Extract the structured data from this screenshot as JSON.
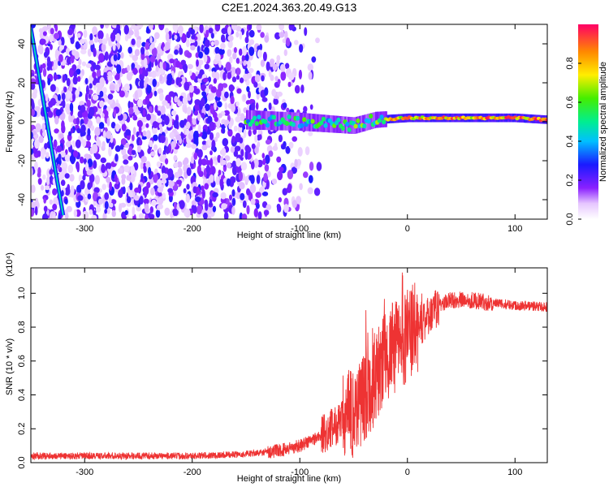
{
  "title": "C2E1.2024.363.20.49.G13",
  "chart_data": [
    {
      "type": "heatmap",
      "xlabel": "Height of straight line (km)",
      "ylabel": "Frequency (Hz)",
      "xlim": [
        -350,
        130
      ],
      "ylim": [
        -50,
        50
      ],
      "xticks": [
        -300,
        -200,
        -100,
        0,
        100
      ],
      "yticks": [
        -40,
        -20,
        0,
        20,
        40
      ],
      "colorbar": {
        "label": "Normalized spectral amplitude",
        "range": [
          0,
          1
        ],
        "ticks": [
          "0.0",
          "0.2",
          "0.4",
          "0.6",
          "0.8"
        ],
        "tick_values": [
          0.0,
          0.2,
          0.4,
          0.6,
          0.8
        ]
      },
      "features": [
        {
          "name": "noise speckle field",
          "x_range": [
            -350,
            -120
          ],
          "y_range": [
            -50,
            50
          ],
          "amplitude": 0.15
        },
        {
          "name": "diagonal tone streak",
          "points": [
            [
              -350,
              48
            ],
            [
              -320,
              -48
            ]
          ],
          "amplitude": 0.4
        },
        {
          "name": "carrier band",
          "points": [
            [
              -150,
              1
            ],
            [
              -100,
              0
            ],
            [
              -50,
              -2
            ],
            [
              -30,
              1
            ],
            [
              0,
              2
            ],
            [
              50,
              2
            ],
            [
              100,
              2
            ],
            [
              130,
              1
            ]
          ],
          "amplitude_end": 1.0
        }
      ]
    },
    {
      "type": "line",
      "xlabel": "Height of straight line (km)",
      "ylabel": "SNR (10 * v/v)",
      "yscale_label": "(x10⁴)",
      "xlim": [
        -350,
        130
      ],
      "ylim": [
        0,
        1.15
      ],
      "xticks": [
        -300,
        -200,
        -100,
        0,
        100
      ],
      "yticks": [
        0.0,
        0.2,
        0.4,
        0.6,
        0.8,
        1.0
      ],
      "ytick_labels": [
        "0.0",
        "0.2",
        "0.4",
        "0.6",
        "0.8",
        "1.0"
      ],
      "series": [
        {
          "name": "SNR",
          "color": "#ee3333",
          "x": [
            -350,
            -300,
            -250,
            -200,
            -150,
            -120,
            -100,
            -80,
            -60,
            -50,
            -40,
            -30,
            -20,
            -10,
            0,
            10,
            20,
            30,
            40,
            60,
            80,
            100,
            130
          ],
          "values": [
            0.04,
            0.04,
            0.04,
            0.04,
            0.05,
            0.07,
            0.1,
            0.16,
            0.25,
            0.3,
            0.4,
            0.5,
            0.62,
            0.7,
            0.75,
            0.8,
            0.86,
            0.93,
            0.96,
            0.96,
            0.94,
            0.93,
            0.92
          ]
        }
      ]
    }
  ]
}
